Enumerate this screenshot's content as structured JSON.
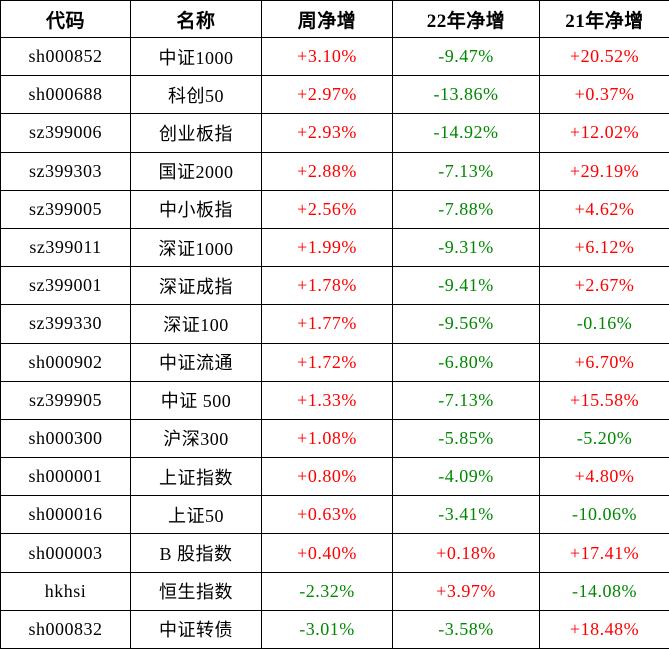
{
  "colors": {
    "up": "#ff0000",
    "down": "#008800",
    "border": "#000000",
    "background": "#ffffff",
    "header_text": "#000000"
  },
  "chart_data": {
    "type": "table",
    "columns": [
      "代码",
      "名称",
      "周净增",
      "22年净增",
      "21年净增"
    ],
    "rows": [
      {
        "code": "sh000852",
        "name": "中证1000",
        "week": "+3.10%",
        "y22": "-9.47%",
        "y21": "+20.52%"
      },
      {
        "code": "sh000688",
        "name": "科创50",
        "week": "+2.97%",
        "y22": "-13.86%",
        "y21": "+0.37%"
      },
      {
        "code": "sz399006",
        "name": "创业板指",
        "week": "+2.93%",
        "y22": "-14.92%",
        "y21": "+12.02%"
      },
      {
        "code": "sz399303",
        "name": "国证2000",
        "week": "+2.88%",
        "y22": "-7.13%",
        "y21": "+29.19%"
      },
      {
        "code": "sz399005",
        "name": "中小板指",
        "week": "+2.56%",
        "y22": "-7.88%",
        "y21": "+4.62%"
      },
      {
        "code": "sz399011",
        "name": "深证1000",
        "week": "+1.99%",
        "y22": "-9.31%",
        "y21": "+6.12%"
      },
      {
        "code": "sz399001",
        "name": "深证成指",
        "week": "+1.78%",
        "y22": "-9.41%",
        "y21": "+2.67%"
      },
      {
        "code": "sz399330",
        "name": "深证100",
        "week": "+1.77%",
        "y22": "-9.56%",
        "y21": "-0.16%"
      },
      {
        "code": "sh000902",
        "name": "中证流通",
        "week": "+1.72%",
        "y22": "-6.80%",
        "y21": "+6.70%"
      },
      {
        "code": "sz399905",
        "name": "中证 500",
        "week": "+1.33%",
        "y22": "-7.13%",
        "y21": "+15.58%"
      },
      {
        "code": "sh000300",
        "name": "沪深300",
        "week": "+1.08%",
        "y22": "-5.85%",
        "y21": "-5.20%"
      },
      {
        "code": "sh000001",
        "name": "上证指数",
        "week": "+0.80%",
        "y22": "-4.09%",
        "y21": "+4.80%"
      },
      {
        "code": "sh000016",
        "name": "上证50",
        "week": "+0.63%",
        "y22": "-3.41%",
        "y21": "-10.06%"
      },
      {
        "code": "sh000003",
        "name": "B 股指数",
        "week": "+0.40%",
        "y22": "+0.18%",
        "y21": "+17.41%"
      },
      {
        "code": "hkhsi",
        "name": "恒生指数",
        "week": "-2.32%",
        "y22": "+3.97%",
        "y21": "-14.08%"
      },
      {
        "code": "sh000832",
        "name": "中证转债",
        "week": "-3.01%",
        "y22": "-3.58%",
        "y21": "+18.48%"
      }
    ]
  }
}
